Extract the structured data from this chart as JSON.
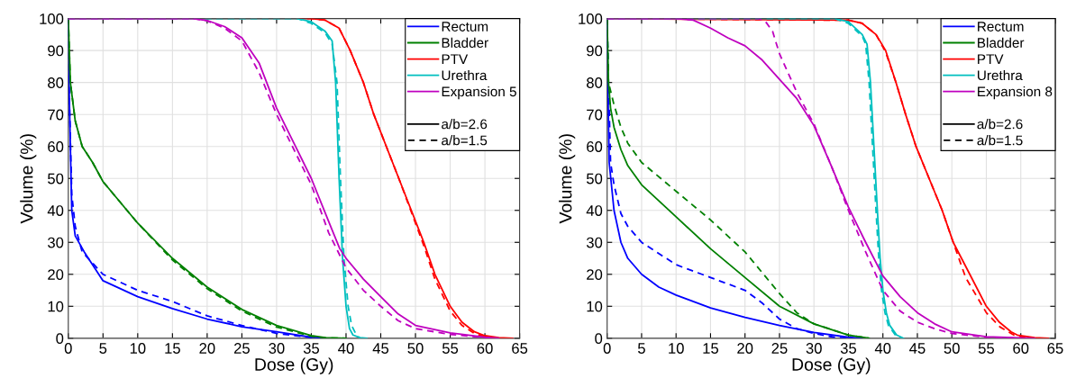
{
  "chart_data": [
    {
      "type": "line",
      "xlabel": "Dose (Gy)",
      "ylabel": "Volume (%)",
      "xlim": [
        0,
        65
      ],
      "ylim": [
        0,
        100
      ],
      "xticks": [
        0,
        5,
        10,
        15,
        20,
        25,
        30,
        35,
        40,
        45,
        50,
        55,
        60,
        65
      ],
      "yticks": [
        0,
        10,
        20,
        30,
        40,
        50,
        60,
        70,
        80,
        90,
        100
      ],
      "grid": true,
      "legend": "top right",
      "series": [
        {
          "name": "Rectum",
          "color": "#0000ff",
          "line_style": "solid",
          "x": [
            0,
            0.1,
            0.5,
            1,
            2.3,
            5,
            10,
            15,
            20,
            25,
            30,
            35,
            37
          ],
          "values": [
            100,
            80,
            40,
            32,
            27,
            18,
            13,
            9.3,
            6,
            3.6,
            2,
            0.3,
            0
          ]
        },
        {
          "color": "#0000ff",
          "line_style": "dashed",
          "x": [
            0,
            0.1,
            0.5,
            1,
            2,
            5,
            10,
            15,
            20,
            25,
            30,
            35,
            37
          ],
          "values": [
            100,
            80,
            45,
            35,
            27,
            20,
            15,
            11.5,
            7,
            4,
            1.5,
            0.2,
            0
          ]
        },
        {
          "name": "Bladder",
          "color": "#008000",
          "line_style": "solid",
          "x": [
            0,
            0.3,
            1,
            2,
            3.5,
            5,
            10,
            15,
            20,
            25,
            30,
            35,
            37,
            40
          ],
          "values": [
            100,
            80,
            68,
            60,
            55,
            49,
            36,
            25,
            16,
            9,
            4,
            0.8,
            0.2,
            0
          ]
        },
        {
          "color": "#008000",
          "line_style": "dashed",
          "x": [
            0,
            0.3,
            1,
            2,
            3.5,
            5,
            10,
            15,
            20,
            25,
            30,
            35,
            37,
            40
          ],
          "values": [
            100,
            80,
            68,
            60,
            55,
            49,
            36,
            24.5,
            15.5,
            8.5,
            3.5,
            0.6,
            0.1,
            0
          ]
        },
        {
          "name": "PTV",
          "color": "#ff0000",
          "line_style": "solid",
          "x": [
            0,
            35,
            37,
            39,
            40.6,
            42.5,
            44,
            45.8,
            47.6,
            49.4,
            51.2,
            52.8,
            55,
            56.7,
            58.5,
            60,
            62,
            64
          ],
          "values": [
            100,
            100,
            99.5,
            97,
            90,
            80,
            70,
            60,
            50,
            40,
            30,
            20,
            10,
            5,
            2,
            0.8,
            0.2,
            0
          ]
        },
        {
          "color": "#ff0000",
          "line_style": "dashed",
          "x": [
            0,
            35,
            37,
            39,
            40.6,
            42.5,
            44,
            45.8,
            47.6,
            49.4,
            51.2,
            52.8,
            55,
            56.7,
            58.5,
            60,
            62
          ],
          "values": [
            100,
            100,
            99.5,
            97,
            90,
            80,
            70,
            60,
            50,
            39.5,
            29,
            18.5,
            8.5,
            4,
            1.5,
            0.5,
            0
          ]
        },
        {
          "name": "Urethra",
          "color": "#00bfbf",
          "line_style": "solid",
          "x": [
            0,
            33,
            35,
            37,
            38,
            38.5,
            39,
            39.5,
            40,
            40.5,
            41,
            42,
            43
          ],
          "values": [
            100,
            100,
            99,
            96,
            93,
            80,
            50,
            25,
            10,
            3,
            1,
            0.2,
            0
          ]
        },
        {
          "color": "#00bfbf",
          "line_style": "dashed",
          "x": [
            0,
            33,
            35,
            37,
            38,
            38.7,
            39.2,
            39.7,
            40.3,
            40.8,
            41.5,
            42
          ],
          "values": [
            100,
            100,
            98.5,
            95.5,
            92,
            80,
            50,
            25,
            10,
            4,
            1,
            0
          ]
        },
        {
          "name": "Expansion 5",
          "color": "#bf00bf",
          "line_style": "solid",
          "x": [
            0,
            18,
            20,
            22.5,
            25,
            27.5,
            30,
            32.5,
            35,
            37.5,
            39.1,
            40,
            42.5,
            45,
            47.5,
            50,
            55,
            60,
            62
          ],
          "values": [
            100,
            100,
            99.4,
            97.5,
            94,
            86,
            72,
            61,
            50,
            36.5,
            28,
            25,
            18.5,
            13,
            7.6,
            4,
            1.7,
            0.3,
            0
          ]
        },
        {
          "color": "#bf00bf",
          "line_style": "dashed",
          "x": [
            0,
            18,
            20,
            22.5,
            25,
            27.5,
            30,
            32.5,
            35,
            37.5,
            40,
            42.5,
            45,
            47.5,
            50,
            55,
            60,
            62
          ],
          "values": [
            100,
            100,
            99.3,
            97,
            93,
            83,
            70,
            59,
            48,
            33,
            22,
            15,
            10,
            5.5,
            3,
            1.2,
            0.2,
            0
          ]
        },
        {
          "name": "a/b=2.6",
          "color": "#000000",
          "line_style": "solid"
        },
        {
          "name": "a/b=1.5",
          "color": "#000000",
          "line_style": "dashed"
        }
      ]
    },
    {
      "type": "line",
      "xlabel": "Dose (Gy)",
      "ylabel": "Volume (%)",
      "xlim": [
        0,
        65
      ],
      "ylim": [
        0,
        100
      ],
      "xticks": [
        0,
        5,
        10,
        15,
        20,
        25,
        30,
        35,
        40,
        45,
        50,
        55,
        60,
        65
      ],
      "yticks": [
        0,
        10,
        20,
        30,
        40,
        50,
        60,
        70,
        80,
        90,
        100
      ],
      "grid": true,
      "legend": "top right",
      "series": [
        {
          "name": "Rectum",
          "color": "#0000ff",
          "line_style": "solid",
          "x": [
            0,
            0.1,
            0.3,
            1,
            2,
            3,
            5,
            7.5,
            10,
            15,
            20,
            25,
            30,
            35,
            37
          ],
          "values": [
            100,
            80,
            55,
            40,
            30,
            25,
            20,
            16,
            13.5,
            9.5,
            6.5,
            4,
            1.8,
            0.3,
            0
          ]
        },
        {
          "color": "#0000ff",
          "line_style": "dashed",
          "x": [
            0,
            0.2,
            0.5,
            1,
            2,
            3,
            5,
            10,
            15,
            20,
            22.5,
            25,
            27.5,
            30,
            33,
            35
          ],
          "values": [
            100,
            80,
            55,
            48,
            39,
            35,
            30,
            23,
            19,
            15,
            11,
            6,
            3,
            1.5,
            0.3,
            0
          ]
        },
        {
          "name": "Bladder",
          "color": "#008000",
          "line_style": "solid",
          "x": [
            0,
            0.2,
            0.5,
            1,
            2,
            3,
            5,
            10,
            15,
            20,
            25,
            30,
            35,
            38
          ],
          "values": [
            100,
            80,
            72,
            66,
            59,
            54,
            48,
            38,
            28,
            19,
            10,
            4.5,
            1,
            0
          ]
        },
        {
          "color": "#008000",
          "line_style": "dashed",
          "x": [
            0,
            0.2,
            1,
            2,
            3,
            5,
            10,
            15,
            20,
            25,
            27.5,
            30,
            35,
            38
          ],
          "values": [
            100,
            80,
            73,
            66,
            61,
            55,
            46,
            37,
            27,
            14,
            8,
            4.5,
            1,
            0
          ]
        },
        {
          "name": "PTV",
          "color": "#ff0000",
          "line_style": "solid",
          "x": [
            0,
            35,
            37,
            39,
            40.4,
            41.9,
            43.3,
            44.8,
            46.7,
            48.6,
            50.2,
            52.6,
            55,
            56.9,
            58.6,
            59.5,
            62,
            64
          ],
          "values": [
            100,
            99.5,
            98.5,
            95,
            90,
            80,
            70,
            60,
            50,
            40,
            30,
            20,
            10,
            5,
            2,
            1,
            0.2,
            0
          ]
        },
        {
          "color": "#ff0000",
          "line_style": "dashed",
          "x": [
            0,
            35,
            37,
            39,
            40.4,
            41.9,
            43.3,
            44.8,
            46.7,
            48.6,
            50.2,
            52,
            55,
            57,
            59,
            61
          ],
          "values": [
            100,
            99.5,
            98.5,
            95,
            89.5,
            80,
            70,
            60,
            50,
            40,
            30,
            19,
            8,
            3.5,
            1,
            0
          ]
        },
        {
          "name": "Urethra",
          "color": "#00bfbf",
          "line_style": "solid",
          "x": [
            0,
            33,
            35,
            37,
            37.7,
            38.2,
            38.7,
            39.2,
            39.6,
            40,
            40.5,
            41,
            42,
            43
          ],
          "values": [
            100,
            100,
            99,
            95,
            92,
            80,
            60,
            40,
            25,
            15,
            8,
            4,
            1,
            0
          ]
        },
        {
          "color": "#00bfbf",
          "line_style": "dashed",
          "x": [
            0,
            33,
            35,
            37,
            37.5,
            38,
            38.5,
            39,
            39.4,
            39.8,
            40.3,
            40.8,
            41.8,
            42.8
          ],
          "values": [
            100,
            100,
            98.5,
            94.5,
            92,
            80,
            60,
            40,
            25,
            15,
            8,
            4,
            1,
            0
          ]
        },
        {
          "name": "Expansion 8",
          "color": "#bf00bf",
          "line_style": "solid",
          "x": [
            0,
            10,
            12.5,
            15,
            17.5,
            20,
            22.5,
            25,
            27.5,
            30,
            32.5,
            35,
            37.5,
            40,
            42.5,
            45,
            47.5,
            50,
            55,
            60,
            62
          ],
          "values": [
            100,
            100,
            99.5,
            97,
            94,
            91.5,
            87,
            81,
            75,
            66.5,
            54,
            41,
            30,
            19.5,
            13,
            8,
            4.5,
            2,
            0.5,
            0.1,
            0
          ]
        },
        {
          "color": "#bf00bf",
          "line_style": "dashed",
          "x": [
            0,
            22,
            23,
            24,
            25,
            27.5,
            30,
            32.5,
            35,
            37.5,
            40,
            42.5,
            45,
            47.5,
            50,
            55,
            60
          ],
          "values": [
            100,
            100,
            99,
            96,
            89,
            77,
            67,
            54,
            40,
            27,
            15,
            8.5,
            5,
            3,
            1.5,
            0.3,
            0
          ]
        },
        {
          "name": "a/b=2.6",
          "color": "#000000",
          "line_style": "solid"
        },
        {
          "name": "a/b=1.5",
          "color": "#000000",
          "line_style": "dashed"
        }
      ]
    }
  ]
}
